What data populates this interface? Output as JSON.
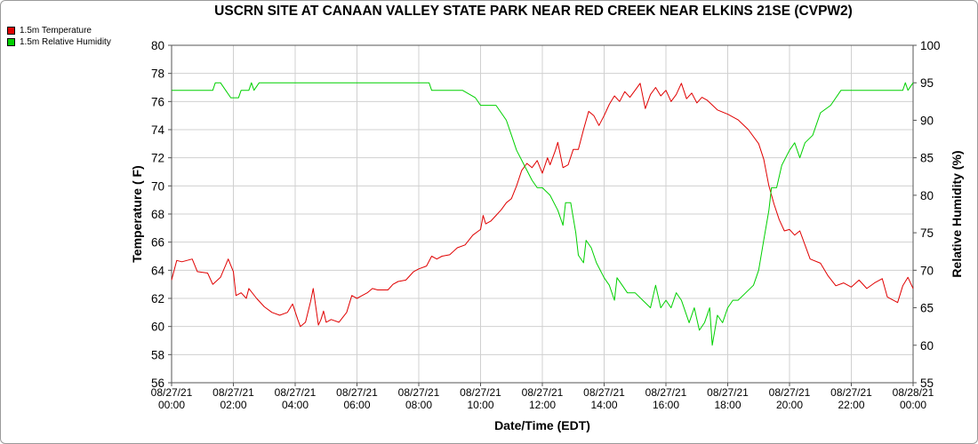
{
  "chart_data": {
    "type": "line",
    "title": "USCRN SITE AT CANAAN VALLEY STATE PARK NEAR RED CREEK NEAR ELKINS 21SE (CVPW2)",
    "xlabel": "Date/Time (EDT)",
    "ylabel": "Temperature ( F)",
    "y2label": "Relative Humidity (%)",
    "ylim": [
      56,
      80
    ],
    "y2lim": [
      55,
      100
    ],
    "yticks": [
      56,
      58,
      60,
      62,
      64,
      66,
      68,
      70,
      72,
      74,
      76,
      78,
      80
    ],
    "y2ticks": [
      55,
      60,
      65,
      70,
      75,
      80,
      85,
      90,
      95,
      100
    ],
    "x_ticks": [
      {
        "date": "08/27/21",
        "time": "00:00"
      },
      {
        "date": "08/27/21",
        "time": "02:00"
      },
      {
        "date": "08/27/21",
        "time": "04:00"
      },
      {
        "date": "08/27/21",
        "time": "06:00"
      },
      {
        "date": "08/27/21",
        "time": "08:00"
      },
      {
        "date": "08/27/21",
        "time": "10:00"
      },
      {
        "date": "08/27/21",
        "time": "12:00"
      },
      {
        "date": "08/27/21",
        "time": "14:00"
      },
      {
        "date": "08/27/21",
        "time": "16:00"
      },
      {
        "date": "08/27/21",
        "time": "18:00"
      },
      {
        "date": "08/27/21",
        "time": "20:00"
      },
      {
        "date": "08/27/21",
        "time": "22:00"
      },
      {
        "date": "08/28/21",
        "time": "00:00"
      }
    ],
    "grid": true,
    "legend_position": "top-left",
    "series": [
      {
        "name": "1.5m Temperature",
        "color": "#e00000",
        "axis": "left",
        "points": [
          [
            "08/27/21 00:00",
            63.3
          ],
          [
            "08/27/21 00:10",
            64.7
          ],
          [
            "08/27/21 00:20",
            64.6
          ],
          [
            "08/27/21 00:40",
            64.8
          ],
          [
            "08/27/21 00:50",
            63.9
          ],
          [
            "08/27/21 01:10",
            63.8
          ],
          [
            "08/27/21 01:20",
            63.0
          ],
          [
            "08/27/21 01:35",
            63.5
          ],
          [
            "08/27/21 01:50",
            64.8
          ],
          [
            "08/27/21 02:00",
            63.9
          ],
          [
            "08/27/21 02:05",
            62.2
          ],
          [
            "08/27/21 02:15",
            62.4
          ],
          [
            "08/27/21 02:25",
            62.0
          ],
          [
            "08/27/21 02:30",
            62.7
          ],
          [
            "08/27/21 02:45",
            62.0
          ],
          [
            "08/27/21 03:00",
            61.4
          ],
          [
            "08/27/21 03:15",
            61.0
          ],
          [
            "08/27/21 03:30",
            60.8
          ],
          [
            "08/27/21 03:45",
            61.0
          ],
          [
            "08/27/21 03:55",
            61.6
          ],
          [
            "08/27/21 04:05",
            60.5
          ],
          [
            "08/27/21 04:10",
            60.0
          ],
          [
            "08/27/21 04:20",
            60.3
          ],
          [
            "08/27/21 04:30",
            61.8
          ],
          [
            "08/27/21 04:35",
            62.7
          ],
          [
            "08/27/21 04:45",
            60.1
          ],
          [
            "08/27/21 04:50",
            60.5
          ],
          [
            "08/27/21 04:55",
            61.1
          ],
          [
            "08/27/21 05:00",
            60.3
          ],
          [
            "08/27/21 05:10",
            60.5
          ],
          [
            "08/27/21 05:25",
            60.3
          ],
          [
            "08/27/21 05:40",
            61.0
          ],
          [
            "08/27/21 05:50",
            62.2
          ],
          [
            "08/27/21 06:00",
            62.0
          ],
          [
            "08/27/21 06:10",
            62.2
          ],
          [
            "08/27/21 06:20",
            62.4
          ],
          [
            "08/27/21 06:30",
            62.7
          ],
          [
            "08/27/21 06:40",
            62.6
          ],
          [
            "08/27/21 07:00",
            62.6
          ],
          [
            "08/27/21 07:10",
            63.0
          ],
          [
            "08/27/21 07:20",
            63.2
          ],
          [
            "08/27/21 07:35",
            63.3
          ],
          [
            "08/27/21 07:50",
            63.9
          ],
          [
            "08/27/21 08:00",
            64.1
          ],
          [
            "08/27/21 08:15",
            64.3
          ],
          [
            "08/27/21 08:25",
            65.0
          ],
          [
            "08/27/21 08:35",
            64.8
          ],
          [
            "08/27/21 08:45",
            65.0
          ],
          [
            "08/27/21 09:00",
            65.1
          ],
          [
            "08/27/21 09:15",
            65.6
          ],
          [
            "08/27/21 09:30",
            65.8
          ],
          [
            "08/27/21 09:45",
            66.5
          ],
          [
            "08/27/21 10:00",
            66.9
          ],
          [
            "08/27/21 10:05",
            67.9
          ],
          [
            "08/27/21 10:10",
            67.3
          ],
          [
            "08/27/21 10:20",
            67.5
          ],
          [
            "08/27/21 10:30",
            67.9
          ],
          [
            "08/27/21 10:40",
            68.3
          ],
          [
            "08/27/21 10:50",
            68.8
          ],
          [
            "08/27/21 11:00",
            69.1
          ],
          [
            "08/27/21 11:10",
            70.0
          ],
          [
            "08/27/21 11:20",
            71.1
          ],
          [
            "08/27/21 11:30",
            71.6
          ],
          [
            "08/27/21 11:40",
            71.3
          ],
          [
            "08/27/21 11:50",
            71.8
          ],
          [
            "08/27/21 12:00",
            70.9
          ],
          [
            "08/27/21 12:10",
            72.0
          ],
          [
            "08/27/21 12:15",
            71.5
          ],
          [
            "08/27/21 12:25",
            72.5
          ],
          [
            "08/27/21 12:30",
            73.1
          ],
          [
            "08/27/21 12:40",
            71.3
          ],
          [
            "08/27/21 12:50",
            71.5
          ],
          [
            "08/27/21 13:00",
            72.6
          ],
          [
            "08/27/21 13:10",
            72.6
          ],
          [
            "08/27/21 13:20",
            74.0
          ],
          [
            "08/27/21 13:30",
            75.3
          ],
          [
            "08/27/21 13:40",
            75.0
          ],
          [
            "08/27/21 13:50",
            74.3
          ],
          [
            "08/27/21 14:00",
            75.0
          ],
          [
            "08/27/21 14:10",
            75.8
          ],
          [
            "08/27/21 14:20",
            76.4
          ],
          [
            "08/27/21 14:30",
            76.0
          ],
          [
            "08/27/21 14:40",
            76.7
          ],
          [
            "08/27/21 14:50",
            76.3
          ],
          [
            "08/27/21 15:00",
            76.8
          ],
          [
            "08/27/21 15:10",
            77.3
          ],
          [
            "08/27/21 15:20",
            75.5
          ],
          [
            "08/27/21 15:30",
            76.5
          ],
          [
            "08/27/21 15:40",
            77.0
          ],
          [
            "08/27/21 15:50",
            76.4
          ],
          [
            "08/27/21 16:00",
            76.8
          ],
          [
            "08/27/21 16:10",
            76.0
          ],
          [
            "08/27/21 16:20",
            76.5
          ],
          [
            "08/27/21 16:30",
            77.3
          ],
          [
            "08/27/21 16:40",
            76.2
          ],
          [
            "08/27/21 16:50",
            76.6
          ],
          [
            "08/27/21 17:00",
            75.9
          ],
          [
            "08/27/21 17:10",
            76.3
          ],
          [
            "08/27/21 17:20",
            76.1
          ],
          [
            "08/27/21 17:40",
            75.4
          ],
          [
            "08/27/21 18:00",
            75.1
          ],
          [
            "08/27/21 18:20",
            74.7
          ],
          [
            "08/27/21 18:40",
            74.0
          ],
          [
            "08/27/21 19:00",
            73.0
          ],
          [
            "08/27/21 19:10",
            71.9
          ],
          [
            "08/27/21 19:20",
            70.0
          ],
          [
            "08/27/21 19:30",
            68.7
          ],
          [
            "08/27/21 19:40",
            67.6
          ],
          [
            "08/27/21 19:50",
            66.8
          ],
          [
            "08/27/21 20:00",
            66.9
          ],
          [
            "08/27/21 20:10",
            66.5
          ],
          [
            "08/27/21 20:20",
            66.8
          ],
          [
            "08/27/21 20:30",
            65.8
          ],
          [
            "08/27/21 20:40",
            64.8
          ],
          [
            "08/27/21 21:00",
            64.5
          ],
          [
            "08/27/21 21:15",
            63.6
          ],
          [
            "08/27/21 21:30",
            62.9
          ],
          [
            "08/27/21 21:45",
            63.1
          ],
          [
            "08/27/21 22:00",
            62.8
          ],
          [
            "08/27/21 22:15",
            63.3
          ],
          [
            "08/27/21 22:30",
            62.7
          ],
          [
            "08/27/21 22:45",
            63.1
          ],
          [
            "08/27/21 23:00",
            63.4
          ],
          [
            "08/27/21 23:10",
            62.1
          ],
          [
            "08/27/21 23:30",
            61.7
          ],
          [
            "08/27/21 23:40",
            62.9
          ],
          [
            "08/27/21 23:50",
            63.5
          ],
          [
            "08/28/21 00:00",
            62.7
          ]
        ]
      },
      {
        "name": "1.5m Relative Humidity",
        "color": "#00d000",
        "axis": "right",
        "points": [
          [
            "08/27/21 00:00",
            94
          ],
          [
            "08/27/21 01:20",
            94
          ],
          [
            "08/27/21 01:25",
            95
          ],
          [
            "08/27/21 01:35",
            95
          ],
          [
            "08/27/21 01:45",
            94
          ],
          [
            "08/27/21 01:55",
            93
          ],
          [
            "08/27/21 02:10",
            93
          ],
          [
            "08/27/21 02:15",
            94
          ],
          [
            "08/27/21 02:30",
            94
          ],
          [
            "08/27/21 02:35",
            95
          ],
          [
            "08/27/21 02:40",
            94
          ],
          [
            "08/27/21 02:50",
            95
          ],
          [
            "08/27/21 08:20",
            95
          ],
          [
            "08/27/21 08:25",
            94
          ],
          [
            "08/27/21 09:25",
            94
          ],
          [
            "08/27/21 09:50",
            93
          ],
          [
            "08/27/21 10:00",
            92
          ],
          [
            "08/27/21 10:30",
            92
          ],
          [
            "08/27/21 10:40",
            91
          ],
          [
            "08/27/21 10:50",
            90
          ],
          [
            "08/27/21 11:00",
            88
          ],
          [
            "08/27/21 11:10",
            86
          ],
          [
            "08/27/21 11:25",
            84
          ],
          [
            "08/27/21 11:40",
            82
          ],
          [
            "08/27/21 11:50",
            81
          ],
          [
            "08/27/21 12:00",
            81
          ],
          [
            "08/27/21 12:15",
            80
          ],
          [
            "08/27/21 12:30",
            78
          ],
          [
            "08/27/21 12:40",
            76
          ],
          [
            "08/27/21 12:45",
            79
          ],
          [
            "08/27/21 12:55",
            79
          ],
          [
            "08/27/21 13:05",
            75
          ],
          [
            "08/27/21 13:10",
            72
          ],
          [
            "08/27/21 13:20",
            71
          ],
          [
            "08/27/21 13:25",
            74
          ],
          [
            "08/27/21 13:35",
            73
          ],
          [
            "08/27/21 13:45",
            71
          ],
          [
            "08/27/21 14:00",
            69
          ],
          [
            "08/27/21 14:10",
            68
          ],
          [
            "08/27/21 14:20",
            66
          ],
          [
            "08/27/21 14:25",
            69
          ],
          [
            "08/27/21 14:35",
            68
          ],
          [
            "08/27/21 14:45",
            67
          ],
          [
            "08/27/21 15:00",
            67
          ],
          [
            "08/27/21 15:15",
            66
          ],
          [
            "08/27/21 15:30",
            65
          ],
          [
            "08/27/21 15:40",
            68
          ],
          [
            "08/27/21 15:50",
            65
          ],
          [
            "08/27/21 16:00",
            66
          ],
          [
            "08/27/21 16:10",
            65
          ],
          [
            "08/27/21 16:20",
            67
          ],
          [
            "08/27/21 16:30",
            66
          ],
          [
            "08/27/21 16:45",
            63
          ],
          [
            "08/27/21 16:55",
            65
          ],
          [
            "08/27/21 17:05",
            62
          ],
          [
            "08/27/21 17:15",
            63
          ],
          [
            "08/27/21 17:25",
            65
          ],
          [
            "08/27/21 17:30",
            60
          ],
          [
            "08/27/21 17:40",
            64
          ],
          [
            "08/27/21 17:50",
            63
          ],
          [
            "08/27/21 18:00",
            65
          ],
          [
            "08/27/21 18:10",
            66
          ],
          [
            "08/27/21 18:20",
            66
          ],
          [
            "08/27/21 18:35",
            67
          ],
          [
            "08/27/21 18:50",
            68
          ],
          [
            "08/27/21 19:00",
            70
          ],
          [
            "08/27/21 19:10",
            74
          ],
          [
            "08/27/21 19:20",
            78
          ],
          [
            "08/27/21 19:25",
            81
          ],
          [
            "08/27/21 19:35",
            81
          ],
          [
            "08/27/21 19:45",
            84
          ],
          [
            "08/27/21 20:00",
            86
          ],
          [
            "08/27/21 20:10",
            87
          ],
          [
            "08/27/21 20:20",
            85
          ],
          [
            "08/27/21 20:30",
            87
          ],
          [
            "08/27/21 20:45",
            88
          ],
          [
            "08/27/21 21:00",
            91
          ],
          [
            "08/27/21 21:20",
            92
          ],
          [
            "08/27/21 21:40",
            94
          ],
          [
            "08/27/21 23:10",
            94
          ],
          [
            "08/27/21 23:40",
            94
          ],
          [
            "08/27/21 23:45",
            95
          ],
          [
            "08/27/21 23:50",
            94
          ],
          [
            "08/28/21 00:00",
            95
          ]
        ]
      }
    ]
  }
}
